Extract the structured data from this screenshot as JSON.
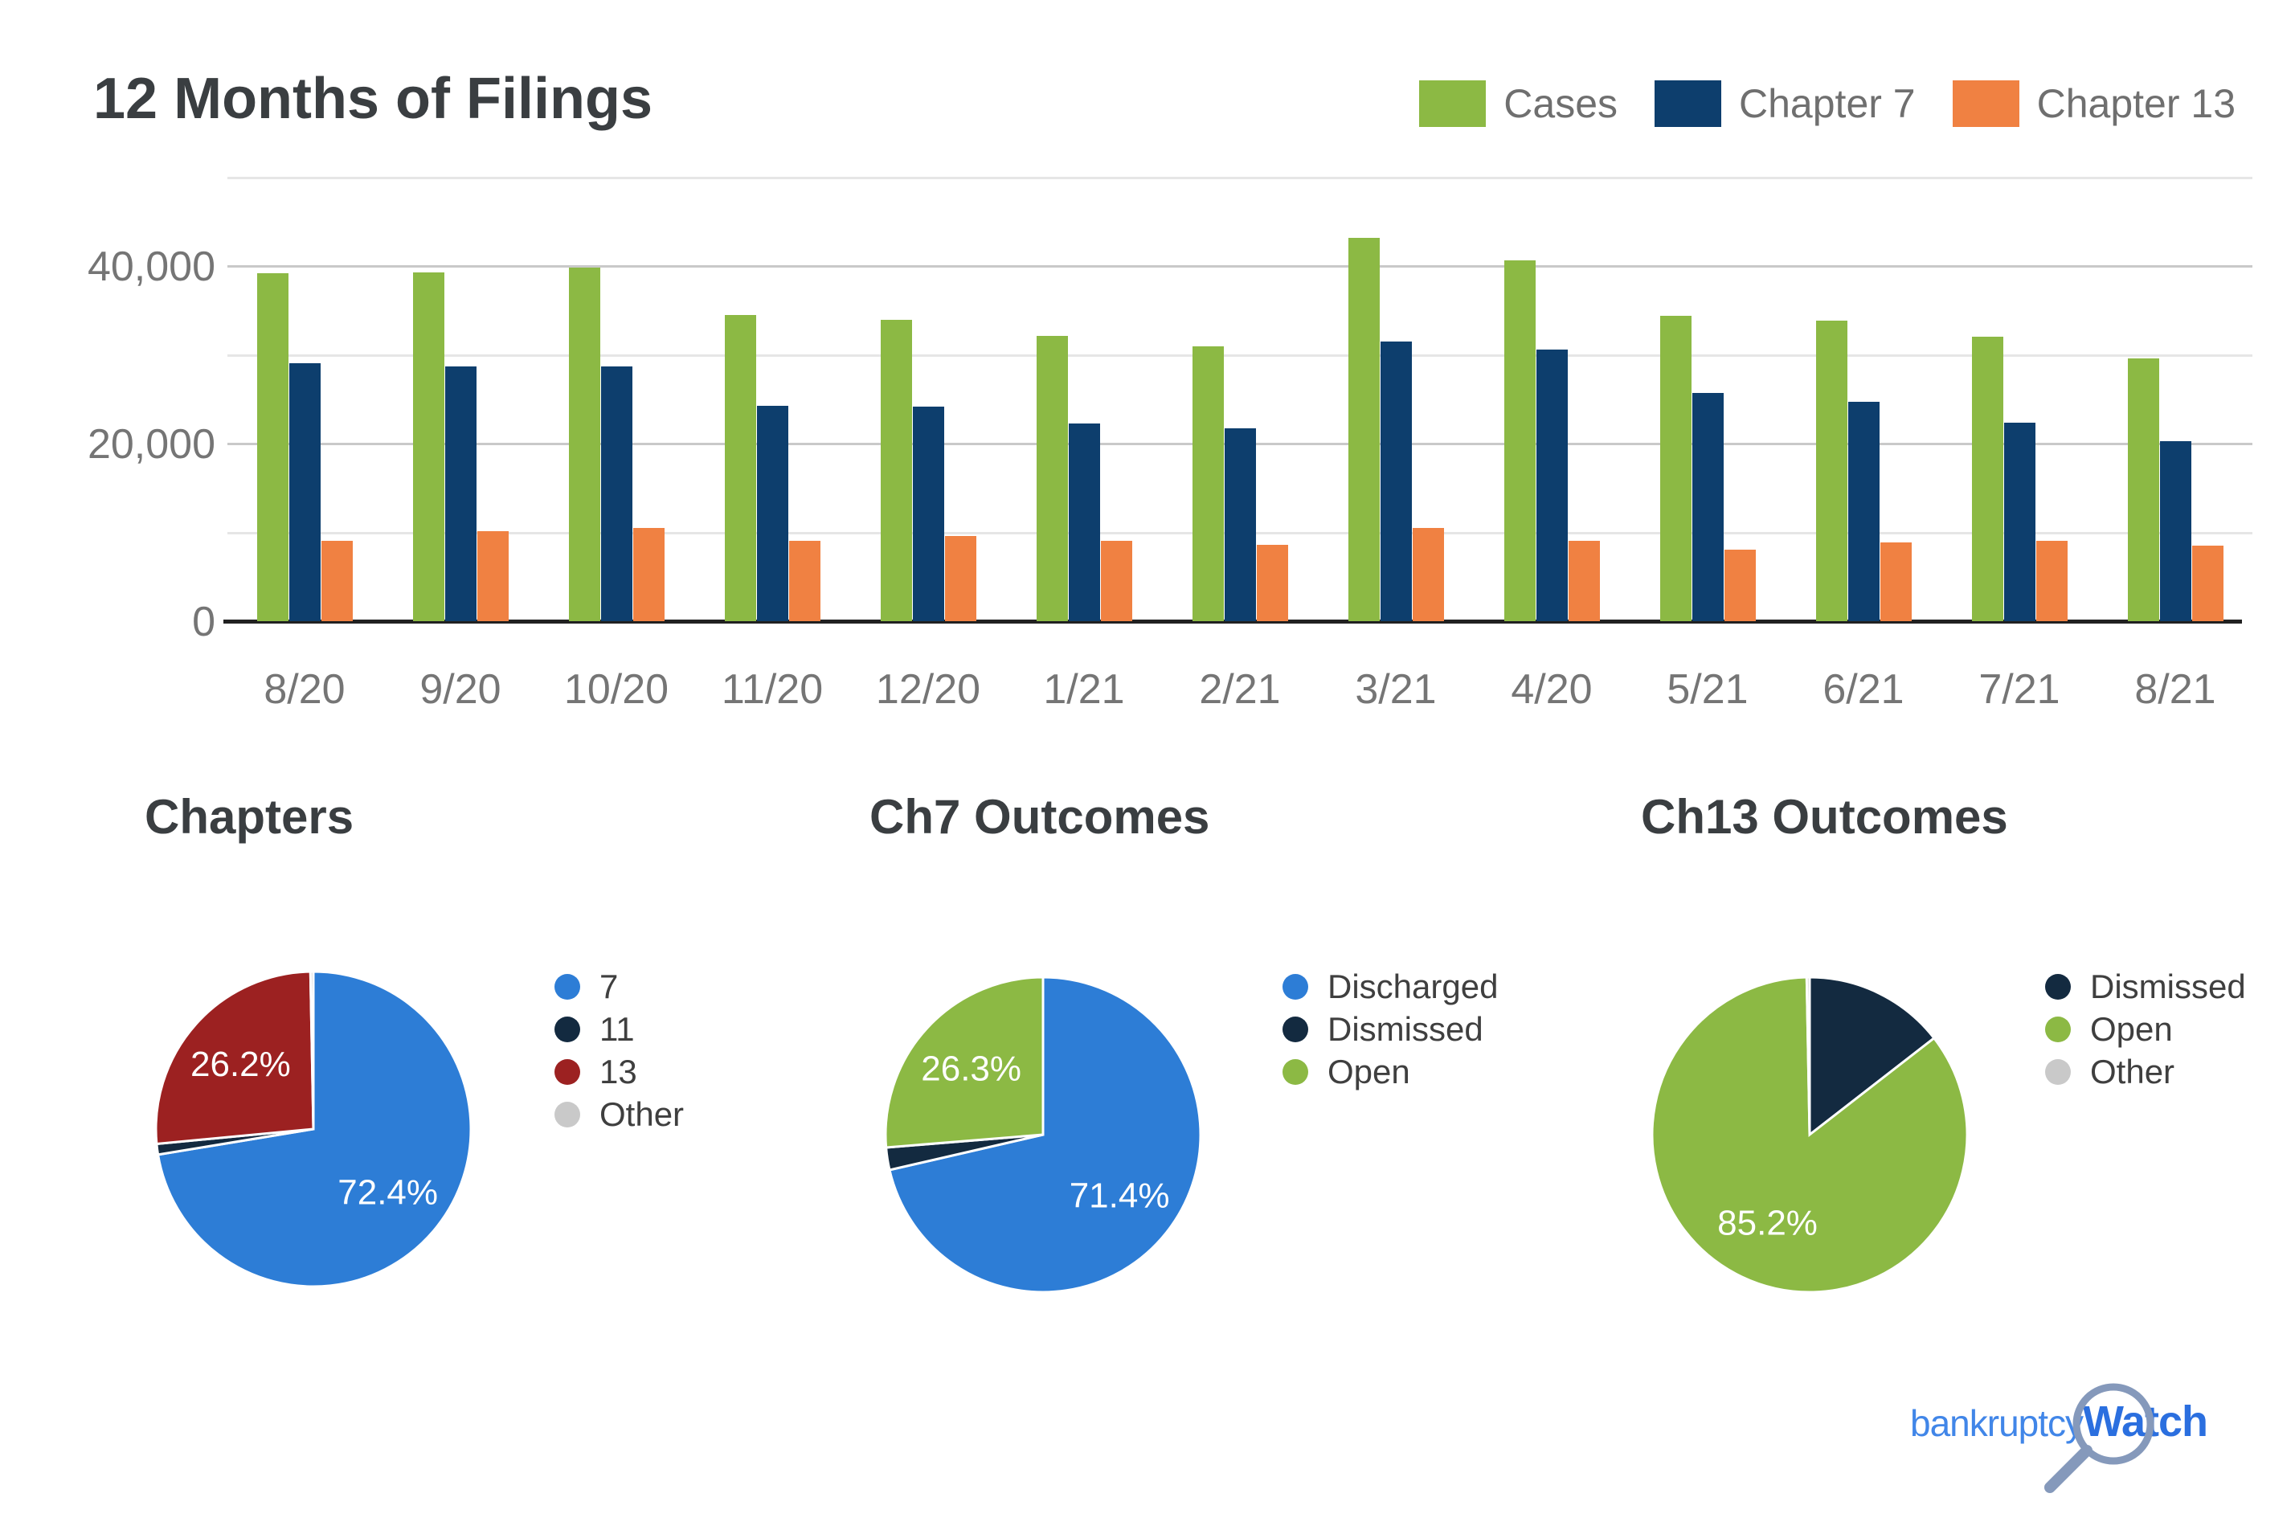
{
  "title": "12 Months of Filings",
  "logo": {
    "part1": "bankruptcy",
    "part2": "Watch"
  },
  "colors": {
    "cases_green": "#8CB944",
    "chapter7_navy": "#0D3E6D",
    "chapter13_orange": "#F08142",
    "pie_blue": "#2D7DD6",
    "pie_dark_navy": "#132A40",
    "pie_dark_red": "#9C2121",
    "pie_gray": "#C9C9C9",
    "axis_text": "#757575",
    "grid_light": "#E6E6E6",
    "grid_labeled": "#C9C9C9",
    "baseline": "#212121",
    "logo_blue": "#2B6FDF",
    "magnifier_gray": "#8599BB"
  },
  "chart_data": [
    {
      "type": "bar",
      "title": "12 Months of Filings",
      "categories": [
        "8/20",
        "9/20",
        "10/20",
        "11/20",
        "12/20",
        "1/21",
        "2/21",
        "3/21",
        "4/20",
        "5/21",
        "6/21",
        "7/21",
        "8/21"
      ],
      "series": [
        {
          "name": "Cases",
          "color": "#8CB944",
          "values": [
            39200,
            39300,
            39900,
            34500,
            34000,
            32200,
            31000,
            43200,
            40700,
            34400,
            33900,
            32100,
            29600
          ]
        },
        {
          "name": "Chapter 7",
          "color": "#0D3E6D",
          "values": [
            29100,
            28700,
            28700,
            24300,
            24200,
            22300,
            21700,
            31500,
            30600,
            25700,
            24700,
            22400,
            20300
          ]
        },
        {
          "name": "Chapter 13",
          "color": "#F08142",
          "values": [
            9100,
            10100,
            10500,
            9100,
            9600,
            9100,
            8600,
            10500,
            9100,
            8100,
            8900,
            9100,
            8500
          ]
        }
      ],
      "ylim": [
        0,
        50000
      ],
      "gridline_step": 10000,
      "yticks": [
        {
          "value": 40000,
          "label": "40,000"
        },
        {
          "value": 20000,
          "label": "20,000"
        },
        {
          "value": 0,
          "label": "0"
        }
      ],
      "grid": true,
      "legend_position": "top-right"
    },
    {
      "type": "pie",
      "title": "Chapters",
      "slices": [
        {
          "label": "7",
          "value": 72.4,
          "color": "#2D7DD6",
          "pct_label": "72.4%"
        },
        {
          "label": "11",
          "value": 1.1,
          "color": "#132A40"
        },
        {
          "label": "13",
          "value": 26.2,
          "color": "#9C2121",
          "pct_label": "26.2%"
        },
        {
          "label": "Other",
          "value": 0.3,
          "color": "#C9C9C9"
        }
      ]
    },
    {
      "type": "pie",
      "title": "Ch7 Outcomes",
      "slices": [
        {
          "label": "Discharged",
          "value": 71.4,
          "color": "#2D7DD6",
          "pct_label": "71.4%"
        },
        {
          "label": "Dismissed",
          "value": 2.3,
          "color": "#132A40"
        },
        {
          "label": "Open",
          "value": 26.3,
          "color": "#8CB944",
          "pct_label": "26.3%"
        }
      ]
    },
    {
      "type": "pie",
      "title": "Ch13 Outcomes",
      "slices": [
        {
          "label": "Dismissed",
          "value": 14.5,
          "color": "#132A40"
        },
        {
          "label": "Open",
          "value": 85.2,
          "color": "#8CB944",
          "pct_label": "85.2%"
        },
        {
          "label": "Other",
          "value": 0.3,
          "color": "#C9C9C9"
        }
      ]
    }
  ]
}
